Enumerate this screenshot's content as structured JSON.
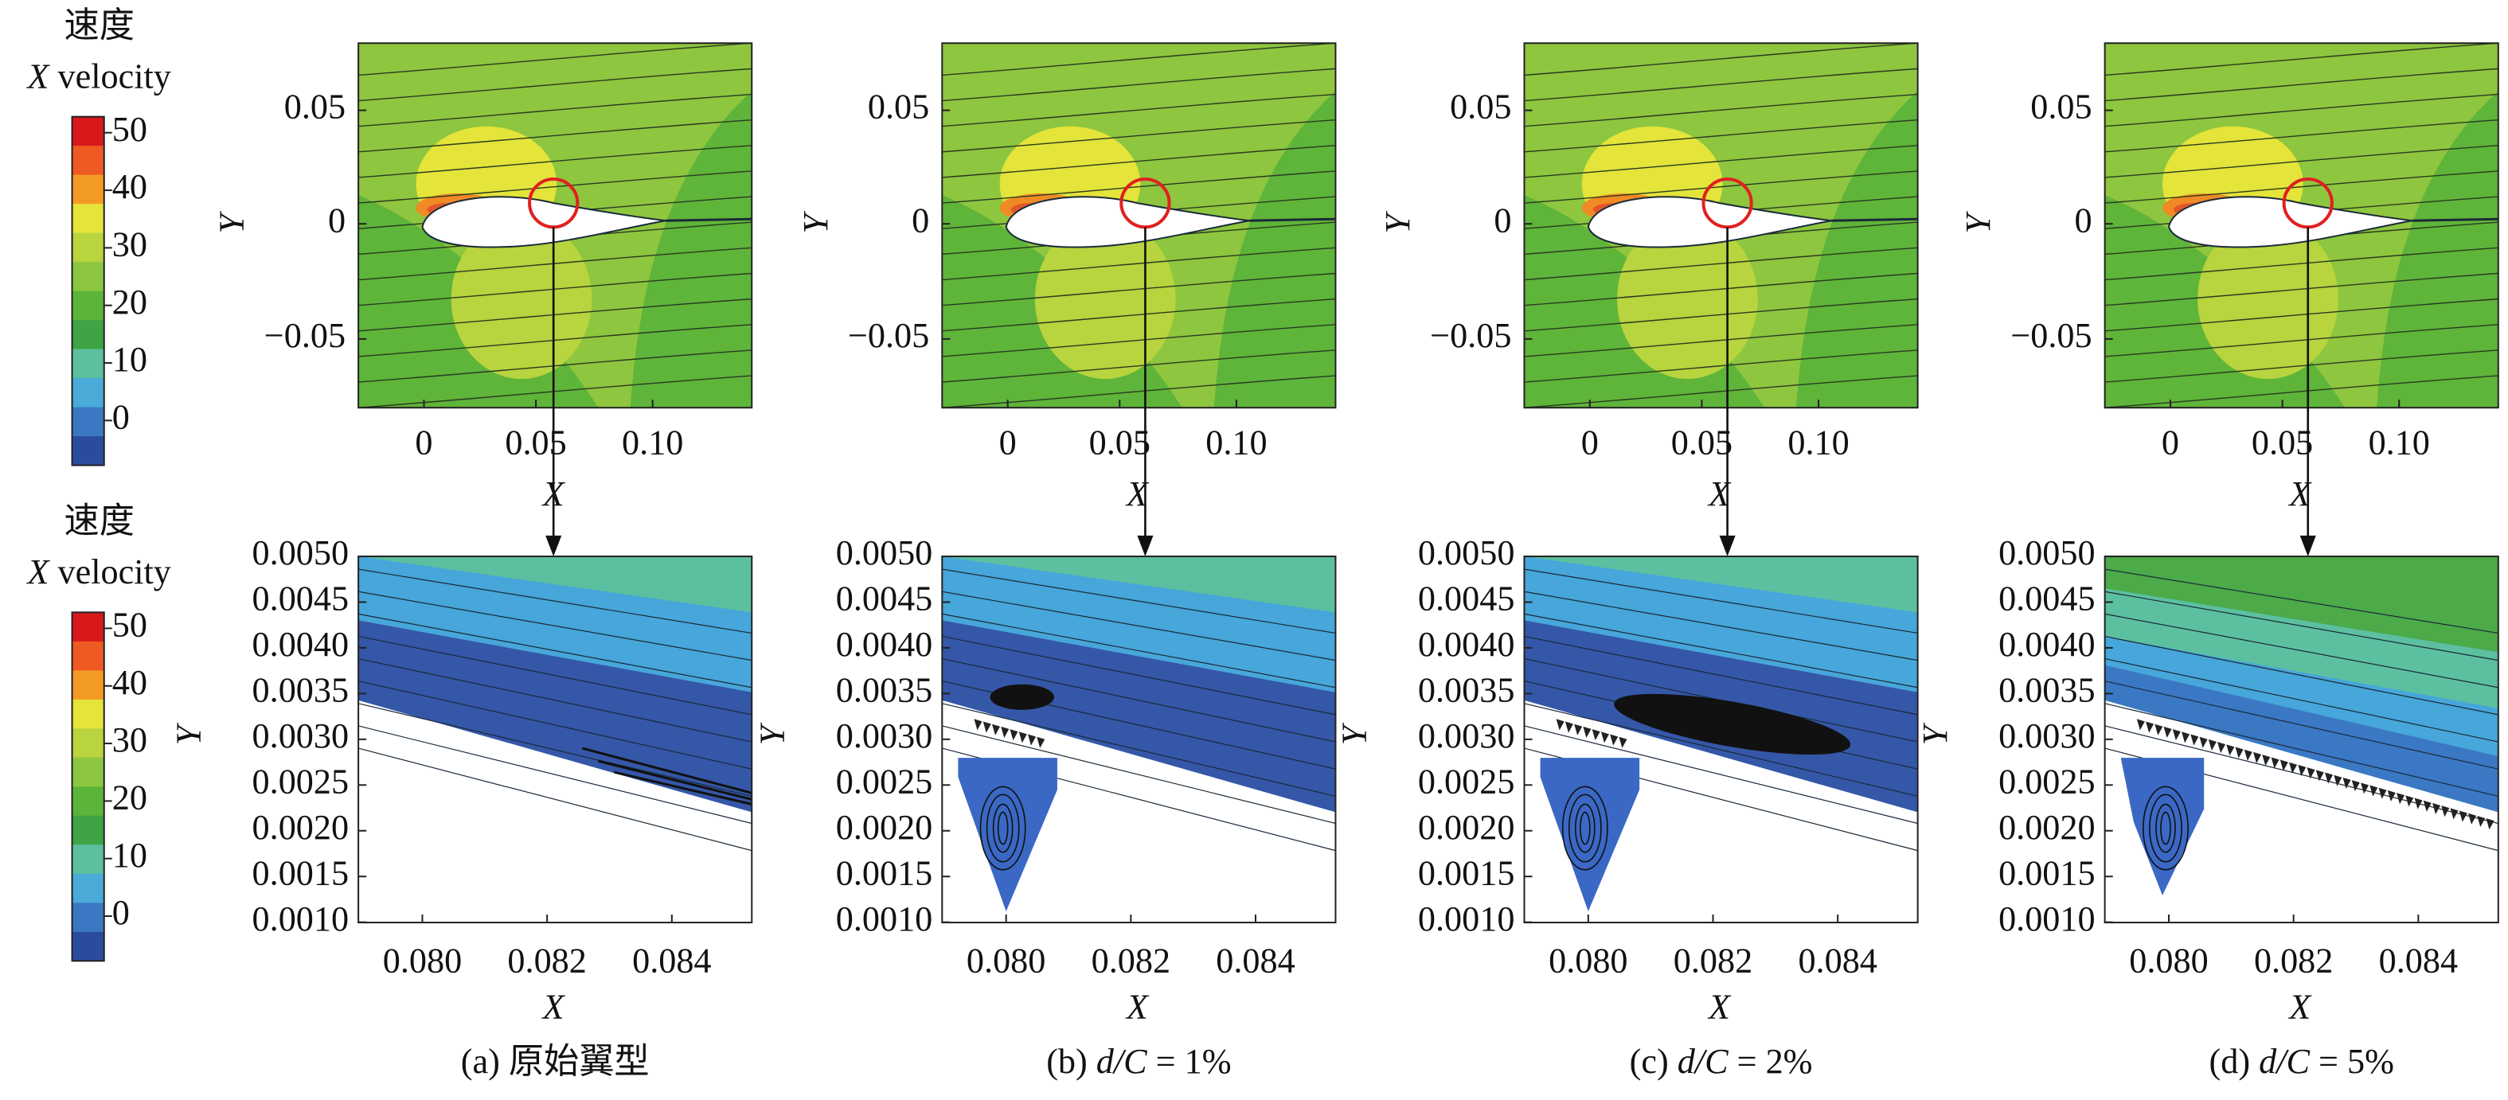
{
  "colorbars": [
    {
      "title": "速度",
      "symbol": "X",
      "word": "velocity",
      "ticks": [
        "50",
        "40",
        "30",
        "20",
        "10",
        "0"
      ]
    },
    {
      "title": "速度",
      "symbol": "X",
      "word": "velocity",
      "ticks": [
        "50",
        "40",
        "30",
        "20",
        "10",
        "0"
      ]
    }
  ],
  "panels": [
    {
      "top": {
        "yticks": [
          "0.05",
          "0",
          "−0.05"
        ],
        "xticks": [
          "0",
          "0.05",
          "0.10"
        ],
        "xlabel": "X",
        "ylabel": "Y"
      },
      "bottom": {
        "yticks": [
          "0.0050",
          "0.0045",
          "0.0040",
          "0.0035",
          "0.0030",
          "0.0025",
          "0.0020",
          "0.0015",
          "0.0010"
        ],
        "xticks": [
          "0.080",
          "0.082",
          "0.084"
        ],
        "xlabel": "X",
        "ylabel": "Y"
      },
      "caption": {
        "label": "(a) ",
        "text": "原始翼型"
      }
    },
    {
      "top": {
        "yticks": [
          "0.05",
          "0",
          "−0.05"
        ],
        "xticks": [
          "0",
          "0.05",
          "0.10"
        ],
        "xlabel": "X",
        "ylabel": "Y"
      },
      "bottom": {
        "yticks": [
          "0.0050",
          "0.0045",
          "0.0040",
          "0.0035",
          "0.0030",
          "0.0025",
          "0.0020",
          "0.0015",
          "0.0010"
        ],
        "xticks": [
          "0.080",
          "0.082",
          "0.084"
        ],
        "xlabel": "X",
        "ylabel": "Y"
      },
      "caption": {
        "label": "(b) ",
        "var": "d/C",
        "text": " = 1%"
      }
    },
    {
      "top": {
        "yticks": [
          "0.05",
          "0",
          "−0.05"
        ],
        "xticks": [
          "0",
          "0.05",
          "0.10"
        ],
        "xlabel": "X",
        "ylabel": "Y"
      },
      "bottom": {
        "yticks": [
          "0.0050",
          "0.0045",
          "0.0040",
          "0.0035",
          "0.0030",
          "0.0025",
          "0.0020",
          "0.0015",
          "0.0010"
        ],
        "xticks": [
          "0.080",
          "0.082",
          "0.084"
        ],
        "xlabel": "X",
        "ylabel": "Y"
      },
      "caption": {
        "label": "(c) ",
        "var": "d/C",
        "text": " = 2%"
      }
    },
    {
      "top": {
        "yticks": [
          "0.05",
          "0",
          "−0.05"
        ],
        "xticks": [
          "0",
          "0.05",
          "0.10"
        ],
        "xlabel": "X",
        "ylabel": "Y"
      },
      "bottom": {
        "yticks": [
          "0.0050",
          "0.0045",
          "0.0040",
          "0.0035",
          "0.0030",
          "0.0025",
          "0.0020",
          "0.0015",
          "0.0010"
        ],
        "xticks": [
          "0.080",
          "0.082",
          "0.084"
        ],
        "xlabel": "X",
        "ylabel": "Y"
      },
      "caption": {
        "label": "(d) ",
        "var": "d/C",
        "text": " = 5%"
      }
    }
  ]
}
